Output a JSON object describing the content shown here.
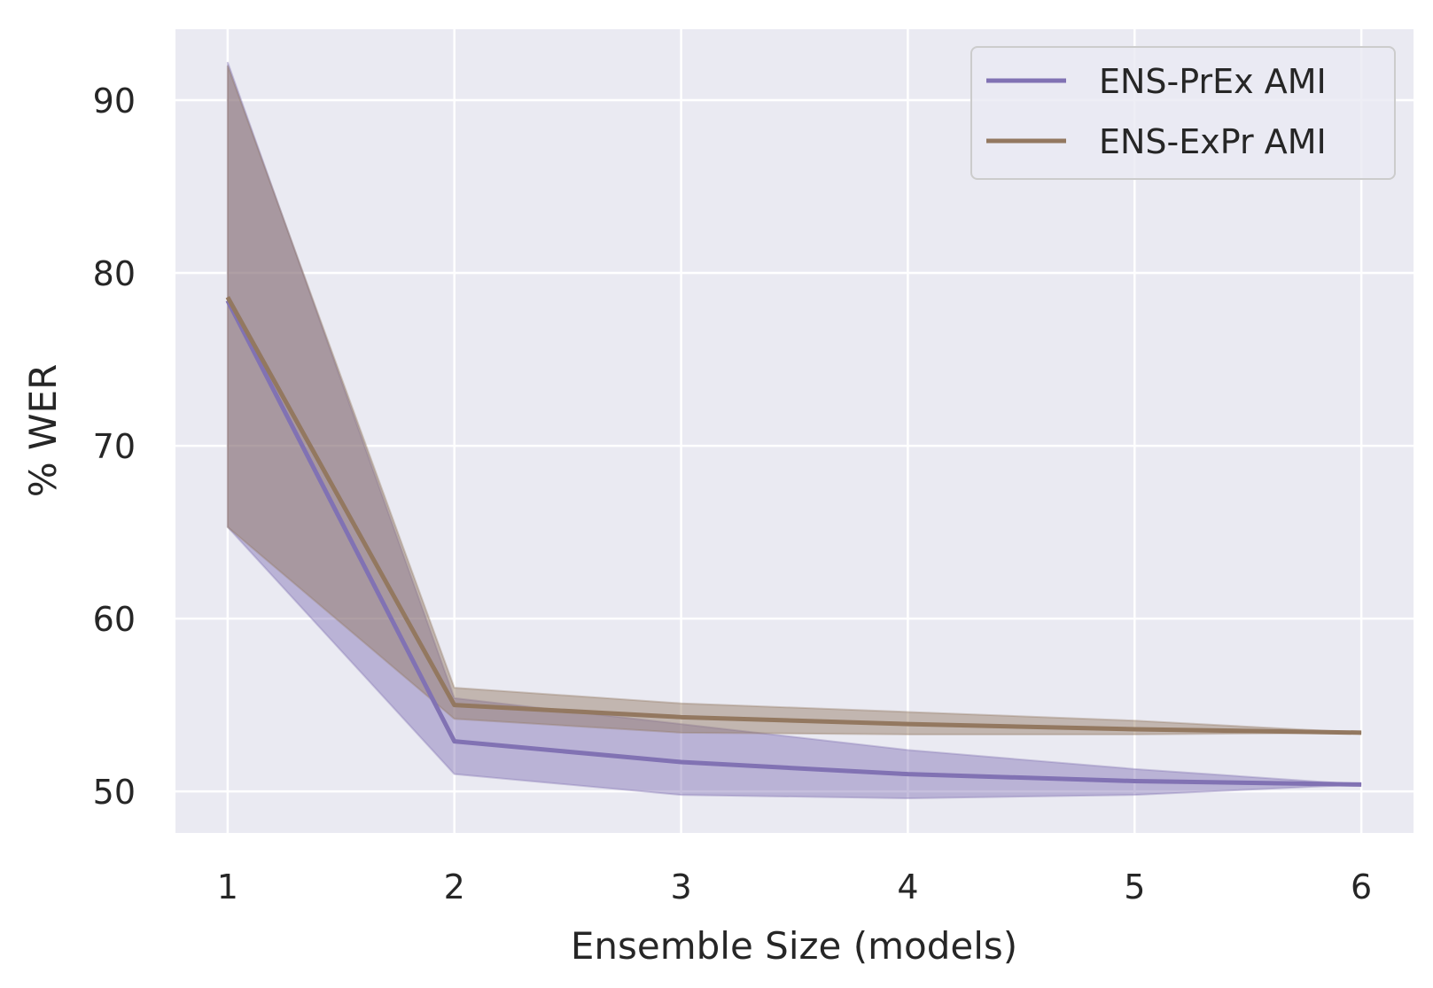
{
  "chart_data": {
    "type": "line",
    "title": "",
    "xlabel": "Ensemble Size (models)",
    "ylabel": "% WER",
    "x": [
      1,
      2,
      3,
      4,
      5,
      6
    ],
    "xlim": [
      0.77,
      6.23
    ],
    "ylim": [
      47.6,
      94.1
    ],
    "xticks": [
      "1",
      "2",
      "3",
      "4",
      "5",
      "6"
    ],
    "yticks": [
      "50",
      "60",
      "70",
      "80",
      "90"
    ],
    "grid": true,
    "background": "#eaeaf2",
    "legend_position": "top-right",
    "series": [
      {
        "name": "ENS-PrEx AMI",
        "color": "#8172b3",
        "values": [
          78.4,
          52.9,
          51.7,
          51.0,
          50.6,
          50.4
        ],
        "lower": [
          65.3,
          51.0,
          49.8,
          49.6,
          49.8,
          50.4
        ],
        "upper": [
          92.2,
          55.4,
          53.9,
          52.4,
          51.3,
          50.4
        ]
      },
      {
        "name": "ENS-ExPr AMI",
        "color": "#937860",
        "values": [
          78.6,
          55.0,
          54.3,
          53.9,
          53.6,
          53.4
        ],
        "lower": [
          65.3,
          54.2,
          53.4,
          53.3,
          53.3,
          53.4
        ],
        "upper": [
          92.0,
          56.0,
          55.1,
          54.6,
          54.1,
          53.4
        ]
      }
    ]
  }
}
